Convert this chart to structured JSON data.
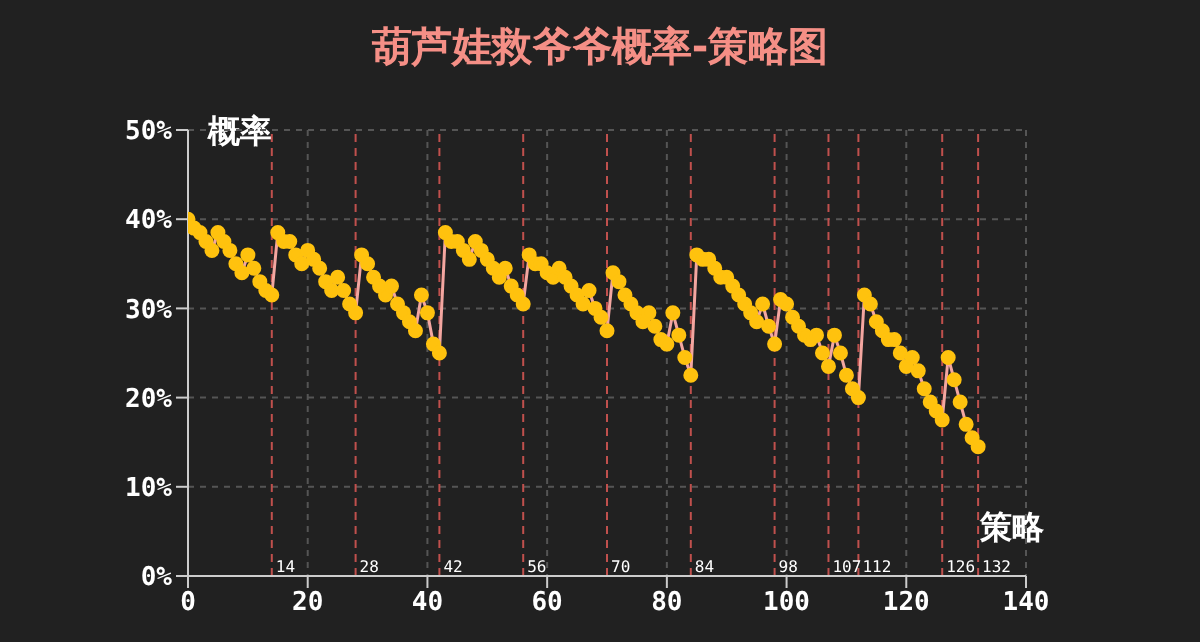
{
  "chart_data": {
    "type": "line",
    "title": "葫芦娃救爷爷概率-策略图",
    "xlabel": "策略",
    "ylabel": "概率",
    "x": [
      0,
      1,
      2,
      3,
      4,
      5,
      6,
      7,
      8,
      9,
      10,
      11,
      12,
      13,
      14,
      15,
      16,
      17,
      18,
      19,
      20,
      21,
      22,
      23,
      24,
      25,
      26,
      27,
      28,
      29,
      30,
      31,
      32,
      33,
      34,
      35,
      36,
      37,
      38,
      39,
      40,
      41,
      42,
      43,
      44,
      45,
      46,
      47,
      48,
      49,
      50,
      51,
      52,
      53,
      54,
      55,
      56,
      57,
      58,
      59,
      60,
      61,
      62,
      63,
      64,
      65,
      66,
      67,
      68,
      69,
      70,
      71,
      72,
      73,
      74,
      75,
      76,
      77,
      78,
      79,
      80,
      81,
      82,
      83,
      84,
      85,
      86,
      87,
      88,
      89,
      90,
      91,
      92,
      93,
      94,
      95,
      96,
      97,
      98,
      99,
      100,
      101,
      102,
      103,
      104,
      105,
      106,
      107,
      108,
      109,
      110,
      111,
      112,
      113,
      114,
      115,
      116,
      117,
      118,
      119,
      120,
      121,
      122,
      123,
      124,
      125,
      126,
      127,
      128,
      129,
      130,
      131,
      132
    ],
    "series": [
      {
        "color": "#f4a6a0",
        "values": [
          40,
          39,
          38.5,
          37.5,
          36.5,
          38.5,
          37.5,
          36.5,
          35,
          34,
          36,
          34.5,
          33,
          32,
          31.5,
          38.5,
          37.5,
          37.5,
          36,
          35,
          36.5,
          35.5,
          34.5,
          33,
          32,
          33.5,
          32,
          30.5,
          29.5,
          36,
          35,
          33.5,
          32.5,
          31.5,
          32.5,
          30.5,
          29.5,
          28.5,
          27.5,
          31.5,
          29.5,
          26,
          25,
          38.5,
          37.5,
          37.5,
          36.5,
          35.5,
          37.5,
          36.5,
          35.5,
          34.5,
          33.5,
          34.5,
          32.5,
          31.5,
          30.5,
          36,
          35,
          35,
          34,
          33.5,
          34.5,
          33.5,
          32.5,
          31.5,
          30.5,
          32,
          30,
          29,
          27.5,
          34,
          33,
          31.5,
          30.5,
          29.5,
          28.5,
          29.5,
          28,
          26.5,
          26,
          29.5,
          27,
          24.5,
          22.5,
          36,
          35.5,
          35.5,
          34.5,
          33.5,
          33.5,
          32.5,
          31.5,
          30.5,
          29.5,
          28.5,
          30.5,
          28,
          26,
          31,
          30.5,
          29,
          28,
          27,
          26.5,
          27,
          25,
          23.5,
          27,
          25,
          22.5,
          21,
          20,
          31.5,
          30.5,
          28.5,
          27.5,
          26.5,
          26.5,
          25,
          23.5,
          24.5,
          23,
          21,
          19.5,
          18.5,
          17.5,
          24.5,
          22,
          19.5,
          17,
          15.5,
          14.5
        ]
      }
    ],
    "xlim": [
      0,
      140
    ],
    "xticks": [
      0,
      20,
      40,
      60,
      80,
      100,
      120,
      140
    ],
    "ylim": [
      0,
      50
    ],
    "yticks": [
      {
        "value": 0,
        "label": "0%"
      },
      {
        "value": 10,
        "label": "10%"
      },
      {
        "value": 20,
        "label": "20%"
      },
      {
        "value": 30,
        "label": "30%"
      },
      {
        "value": 40,
        "label": "40%"
      },
      {
        "value": 50,
        "label": "50%"
      }
    ],
    "grid": true,
    "marker": "circle",
    "line_style": "solid",
    "ref_lines": [
      {
        "axis": "x",
        "value": 14,
        "label": "14",
        "color": "#c0504d",
        "line_style": "dashed"
      },
      {
        "axis": "x",
        "value": 28,
        "label": "28",
        "color": "#c0504d",
        "line_style": "dashed"
      },
      {
        "axis": "x",
        "value": 42,
        "label": "42",
        "color": "#c0504d",
        "line_style": "dashed"
      },
      {
        "axis": "x",
        "value": 56,
        "label": "56",
        "color": "#c0504d",
        "line_style": "dashed"
      },
      {
        "axis": "x",
        "value": 70,
        "label": "70",
        "color": "#c0504d",
        "line_style": "dashed"
      },
      {
        "axis": "x",
        "value": 84,
        "label": "84",
        "color": "#c0504d",
        "line_style": "dashed"
      },
      {
        "axis": "x",
        "value": 98,
        "label": "98",
        "color": "#c0504d",
        "line_style": "dashed"
      },
      {
        "axis": "x",
        "value": 107,
        "label": "107",
        "color": "#c0504d",
        "line_style": "dashed"
      },
      {
        "axis": "x",
        "value": 112,
        "label": "112",
        "color": "#c0504d",
        "line_style": "dashed"
      },
      {
        "axis": "x",
        "value": 126,
        "label": "126",
        "color": "#c0504d",
        "line_style": "dashed"
      },
      {
        "axis": "x",
        "value": 132,
        "label": "132",
        "color": "#c0504d",
        "line_style": "dashed"
      }
    ]
  }
}
